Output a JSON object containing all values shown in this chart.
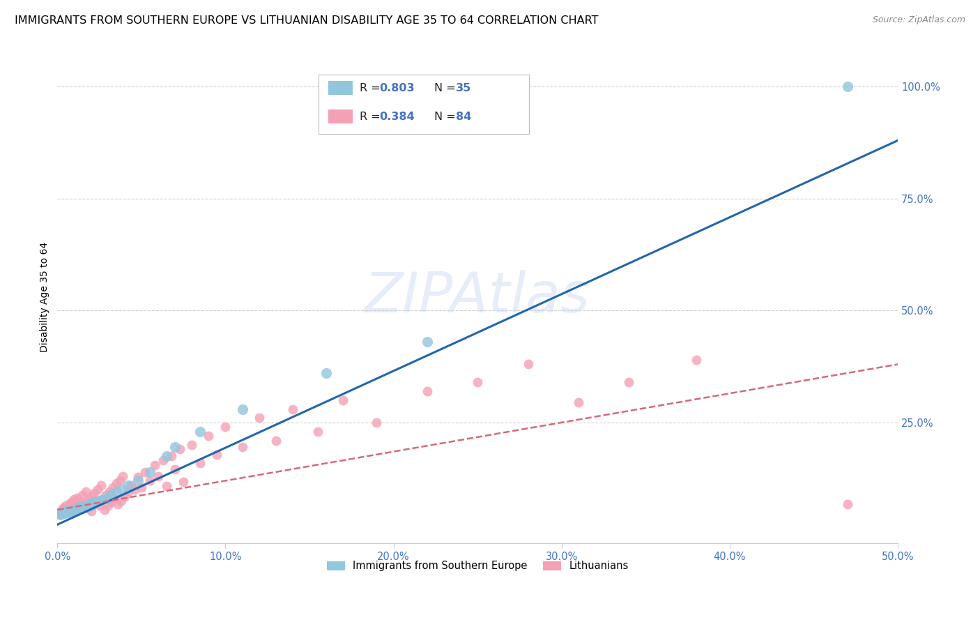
{
  "title": "IMMIGRANTS FROM SOUTHERN EUROPE VS LITHUANIAN DISABILITY AGE 35 TO 64 CORRELATION CHART",
  "source": "Source: ZipAtlas.com",
  "ylabel_left": "Disability Age 35 to 64",
  "xticklabels": [
    "0.0%",
    "10.0%",
    "20.0%",
    "30.0%",
    "40.0%",
    "50.0%"
  ],
  "xlim": [
    0.0,
    0.5
  ],
  "ylim": [
    -0.02,
    1.08
  ],
  "legend_r1": "0.803",
  "legend_n1": "35",
  "legend_r2": "0.384",
  "legend_n2": "84",
  "legend_label1": "Immigrants from Southern Europe",
  "legend_label2": "Lithuanians",
  "color_blue": "#92c5de",
  "color_blue_line": "#2166ac",
  "color_pink": "#f4a0b5",
  "color_pink_line": "#d6687a",
  "color_blue_text": "#4472c4",
  "watermark": "ZIPAtlas",
  "blue_scatter_x": [
    0.002,
    0.003,
    0.004,
    0.005,
    0.006,
    0.007,
    0.008,
    0.009,
    0.01,
    0.011,
    0.012,
    0.013,
    0.015,
    0.016,
    0.017,
    0.018,
    0.02,
    0.021,
    0.022,
    0.025,
    0.027,
    0.03,
    0.032,
    0.035,
    0.038,
    0.042,
    0.048,
    0.055,
    0.065,
    0.07,
    0.085,
    0.11,
    0.16,
    0.22,
    0.47
  ],
  "blue_scatter_y": [
    0.045,
    0.05,
    0.048,
    0.052,
    0.05,
    0.055,
    0.048,
    0.052,
    0.055,
    0.058,
    0.06,
    0.062,
    0.058,
    0.065,
    0.06,
    0.068,
    0.065,
    0.07,
    0.072,
    0.075,
    0.078,
    0.082,
    0.088,
    0.095,
    0.1,
    0.11,
    0.12,
    0.14,
    0.175,
    0.195,
    0.23,
    0.28,
    0.36,
    0.43,
    1.0
  ],
  "pink_scatter_x": [
    0.001,
    0.002,
    0.002,
    0.003,
    0.003,
    0.004,
    0.004,
    0.005,
    0.005,
    0.006,
    0.007,
    0.007,
    0.008,
    0.008,
    0.009,
    0.01,
    0.01,
    0.011,
    0.012,
    0.012,
    0.013,
    0.014,
    0.015,
    0.015,
    0.016,
    0.017,
    0.018,
    0.019,
    0.02,
    0.02,
    0.021,
    0.022,
    0.023,
    0.024,
    0.025,
    0.026,
    0.027,
    0.028,
    0.029,
    0.03,
    0.031,
    0.032,
    0.033,
    0.034,
    0.035,
    0.036,
    0.037,
    0.038,
    0.039,
    0.04,
    0.042,
    0.044,
    0.046,
    0.048,
    0.05,
    0.052,
    0.055,
    0.058,
    0.06,
    0.063,
    0.065,
    0.068,
    0.07,
    0.073,
    0.075,
    0.08,
    0.085,
    0.09,
    0.095,
    0.1,
    0.11,
    0.12,
    0.13,
    0.14,
    0.155,
    0.17,
    0.19,
    0.22,
    0.25,
    0.28,
    0.31,
    0.34,
    0.38,
    0.47
  ],
  "pink_scatter_y": [
    0.045,
    0.048,
    0.052,
    0.05,
    0.058,
    0.052,
    0.06,
    0.048,
    0.065,
    0.055,
    0.06,
    0.068,
    0.058,
    0.072,
    0.065,
    0.05,
    0.078,
    0.062,
    0.055,
    0.082,
    0.068,
    0.058,
    0.072,
    0.088,
    0.065,
    0.095,
    0.06,
    0.078,
    0.052,
    0.085,
    0.068,
    0.092,
    0.075,
    0.1,
    0.065,
    0.11,
    0.078,
    0.055,
    0.088,
    0.065,
    0.095,
    0.072,
    0.105,
    0.08,
    0.115,
    0.068,
    0.12,
    0.075,
    0.13,
    0.085,
    0.095,
    0.11,
    0.1,
    0.128,
    0.105,
    0.14,
    0.12,
    0.155,
    0.13,
    0.165,
    0.108,
    0.175,
    0.145,
    0.19,
    0.118,
    0.2,
    0.16,
    0.22,
    0.178,
    0.24,
    0.195,
    0.26,
    0.21,
    0.28,
    0.23,
    0.3,
    0.25,
    0.32,
    0.34,
    0.38,
    0.295,
    0.34,
    0.39,
    0.068
  ],
  "blue_line_x": [
    0.0,
    0.5
  ],
  "blue_line_y": [
    0.022,
    0.88
  ],
  "pink_line_x": [
    0.0,
    0.5
  ],
  "pink_line_y": [
    0.055,
    0.38
  ],
  "blue_scatter_sizes": 120,
  "pink_scatter_sizes": 100,
  "grid_color": "#d0d0d0",
  "background_color": "#ffffff",
  "title_fontsize": 11.5,
  "axis_label_fontsize": 10,
  "tick_fontsize": 10.5
}
